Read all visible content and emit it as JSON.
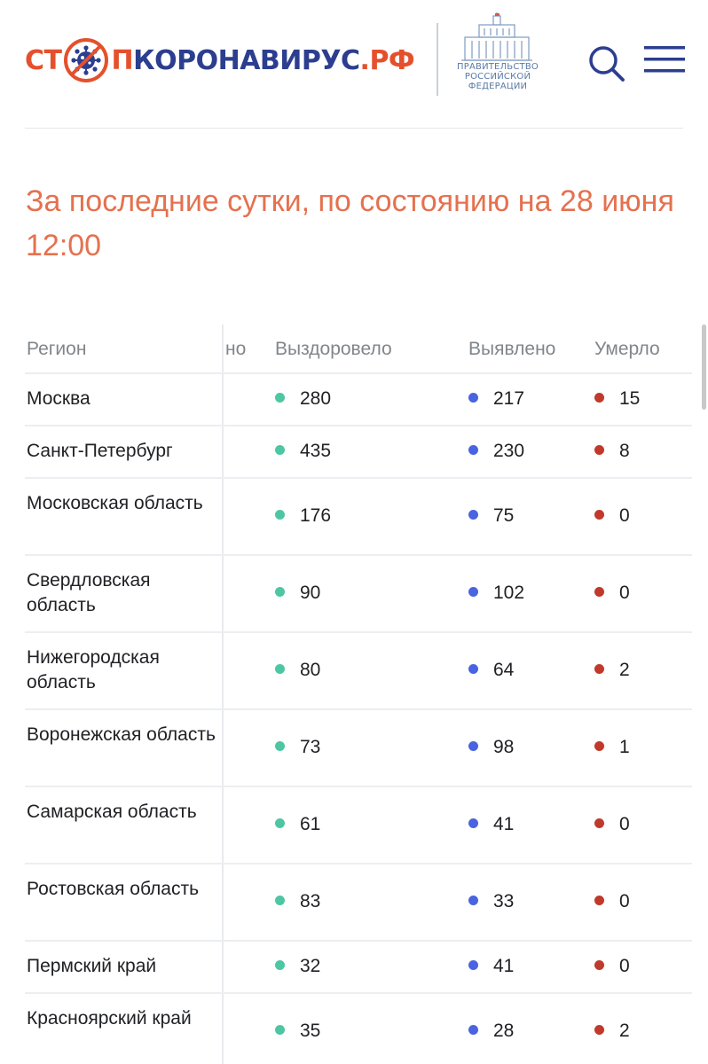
{
  "header": {
    "logo": {
      "part1": "СТ",
      "part2": "П",
      "part3": "КОРОНАВИРУС",
      "part4": ".РФ"
    },
    "gov": {
      "line1": "ПРАВИТЕЛЬСТВО",
      "line2": "РОССИЙСКОЙ",
      "line3": "ФЕДЕРАЦИИ"
    },
    "icons": {
      "search": "search-icon",
      "menu": "hamburger-menu-icon"
    }
  },
  "heading": {
    "line1": "За последние сутки, по состоянию на 28 июня",
    "line2": "12:00"
  },
  "colors": {
    "accent": "#e5714f",
    "brand_orange": "#e5502c",
    "brand_blue": "#2c3e8f",
    "recovered_dot": "#4fc6a3",
    "detected_dot": "#4a63e0",
    "died_dot": "#c0392b"
  },
  "table": {
    "columns": {
      "region": "Регион",
      "hidden": "но",
      "recovered": "Выздоровело",
      "detected": "Выявлено",
      "died": "Умерло"
    },
    "rows": [
      {
        "region": "Москва",
        "recovered": "280",
        "detected": "217",
        "died": "15"
      },
      {
        "region": "Санкт-Петербург",
        "recovered": "435",
        "detected": "230",
        "died": "8"
      },
      {
        "region": "Московская область",
        "recovered": "176",
        "detected": "75",
        "died": "0"
      },
      {
        "region": "Свердловская область",
        "recovered": "90",
        "detected": "102",
        "died": "0"
      },
      {
        "region": "Нижегородская область",
        "recovered": "80",
        "detected": "64",
        "died": "2"
      },
      {
        "region": "Воронежская область",
        "recovered": "73",
        "detected": "98",
        "died": "1"
      },
      {
        "region": "Самарская область",
        "recovered": "61",
        "detected": "41",
        "died": "0"
      },
      {
        "region": "Ростовская область",
        "recovered": "83",
        "detected": "33",
        "died": "0"
      },
      {
        "region": "Пермский край",
        "recovered": "32",
        "detected": "41",
        "died": "0"
      },
      {
        "region": "Красноярский край",
        "recovered": "35",
        "detected": "28",
        "died": "2"
      }
    ]
  }
}
